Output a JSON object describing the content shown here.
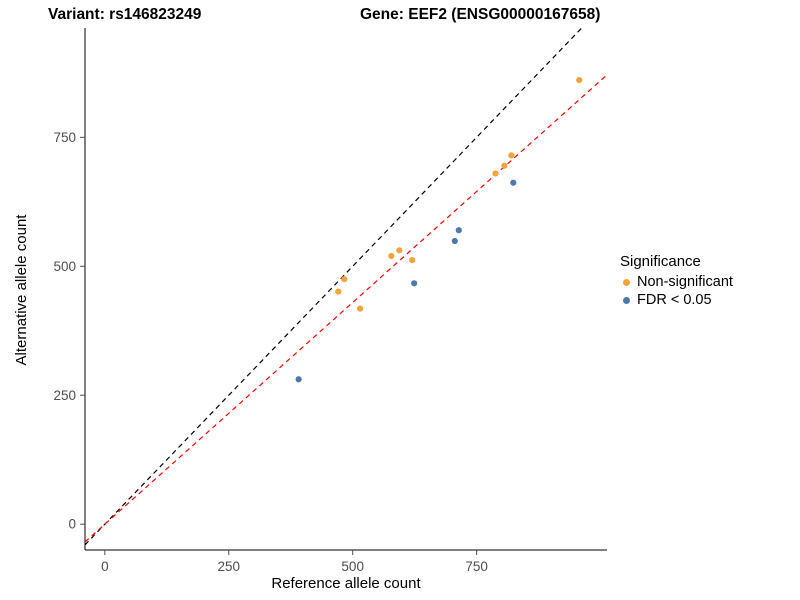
{
  "titles": {
    "variant": "Variant: rs146823249",
    "gene": "Gene: EEF2 (ENSG00000167658)"
  },
  "chart_data": {
    "type": "scatter",
    "xlabel": "Reference allele count",
    "ylabel": "Alternative allele count",
    "xlim": [
      -40,
      1013
    ],
    "ylim": [
      -50,
      962
    ],
    "xticks": [
      0,
      250,
      500,
      750
    ],
    "yticks": [
      0,
      250,
      500,
      750
    ],
    "grid": false,
    "legend": {
      "title": "Significance",
      "position": "right"
    },
    "series": [
      {
        "name": "Non-significant",
        "color": "#F4A43C",
        "points": [
          [
            957,
            861
          ],
          [
            820,
            715
          ],
          [
            806,
            695
          ],
          [
            788,
            680
          ],
          [
            594,
            531
          ],
          [
            578,
            520
          ],
          [
            620,
            512
          ],
          [
            483,
            475
          ],
          [
            471,
            451
          ],
          [
            515,
            418
          ]
        ]
      },
      {
        "name": "FDR < 0.05",
        "color": "#4C79A9",
        "points": [
          [
            824,
            662
          ],
          [
            714,
            570
          ],
          [
            706,
            549
          ],
          [
            624,
            467
          ],
          [
            391,
            281
          ]
        ]
      }
    ],
    "lines": [
      {
        "name": "identity-line",
        "slope": 1.0,
        "intercept": 0,
        "color": "#000000",
        "dash": "5 4"
      },
      {
        "name": "fit-line",
        "slope": 0.86,
        "intercept": 0,
        "color": "#FF0000",
        "dash": "5 4"
      }
    ],
    "tick_color": "#4D4D4D",
    "axis_color": "#000000"
  }
}
